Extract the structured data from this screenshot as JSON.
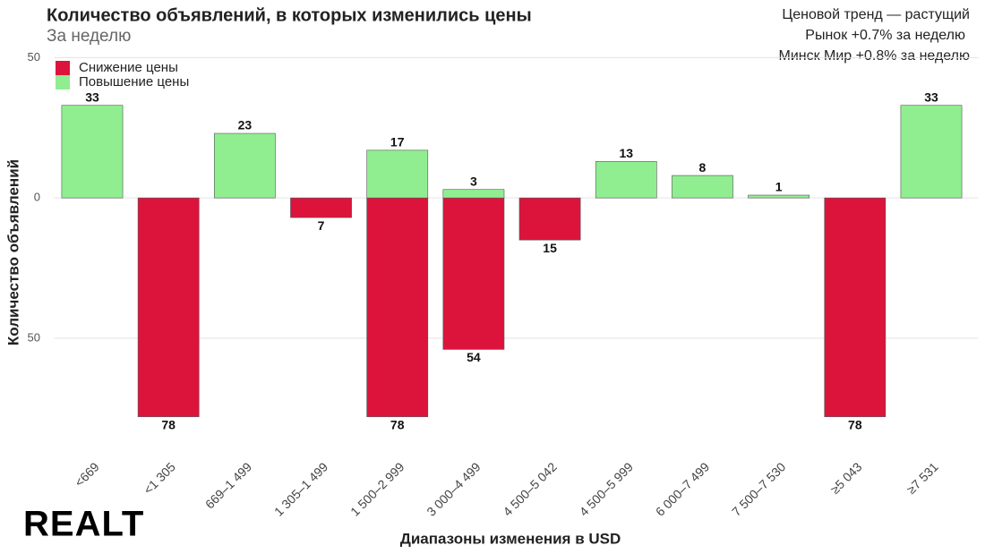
{
  "chart_data": {
    "type": "bar",
    "title": "Количество объявлений, в которых изменились цены",
    "subtitle": "За неделю",
    "annotations": [
      "Ценовой тренд — растущий",
      "Рынок +0.7% за неделю",
      "Минск Мир +0.8% за неделю"
    ],
    "x_label": "Диапазоны изменения в USD",
    "y_label": "Количество объявлений",
    "logo": "REALT",
    "categories": [
      "<669",
      "<1 305",
      "669–1 499",
      "1 305–1 499",
      "1 500–2 999",
      "3 000–4 499",
      "4 500–5 042",
      "4 500–5 999",
      "6 000–7 499",
      "7 500–7 530",
      "≥5 043",
      "≥7 531"
    ],
    "series": [
      {
        "name": "Снижение цены",
        "color": "#dc143c",
        "values": [
          null,
          -78,
          null,
          -7,
          -78,
          -54,
          -15,
          null,
          null,
          null,
          -78,
          null
        ],
        "value_labels": [
          null,
          "78",
          null,
          "7",
          "78",
          "54",
          "15",
          null,
          null,
          null,
          "78",
          null
        ]
      },
      {
        "name": "Повышение цены",
        "color": "#90ee90",
        "values": [
          33,
          null,
          23,
          null,
          17,
          3,
          null,
          13,
          8,
          1,
          null,
          33
        ]
      }
    ],
    "ylim": [
      -88,
      53
    ],
    "yticks": [
      {
        "value": -50,
        "label": "50"
      },
      0,
      50
    ],
    "grid": true,
    "legend": "top-left"
  }
}
